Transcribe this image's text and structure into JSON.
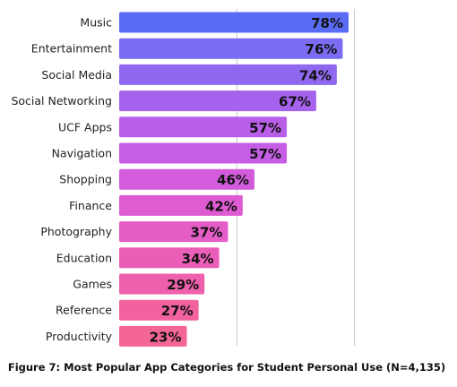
{
  "chart_data": {
    "type": "bar",
    "orientation": "horizontal",
    "title": "Figure 7: Most Popular App Categories for Student Personal Use (N=4,135)",
    "categories": [
      "Music",
      "Entertainment",
      "Social Media",
      "Social Networking",
      "UCF Apps",
      "Navigation",
      "Shopping",
      "Finance",
      "Photography",
      "Education",
      "Games",
      "Reference",
      "Productivity"
    ],
    "values": [
      78,
      76,
      74,
      67,
      57,
      57,
      46,
      42,
      37,
      34,
      29,
      27,
      23
    ],
    "value_labels": [
      "78%",
      "76%",
      "74%",
      "67%",
      "57%",
      "57%",
      "46%",
      "42%",
      "37%",
      "34%",
      "29%",
      "27%",
      "23%"
    ],
    "xlim": [
      0,
      80
    ],
    "grid": true,
    "legend": "none",
    "colors": [
      "#5a6cf5",
      "#7a6df3",
      "#9068f0",
      "#a562ec",
      "#b95ee8",
      "#c55ee4",
      "#d25cdc",
      "#df5bd2",
      "#e55dc6",
      "#ea5eb8",
      "#ee60ab",
      "#f1629f",
      "#f46696"
    ]
  }
}
